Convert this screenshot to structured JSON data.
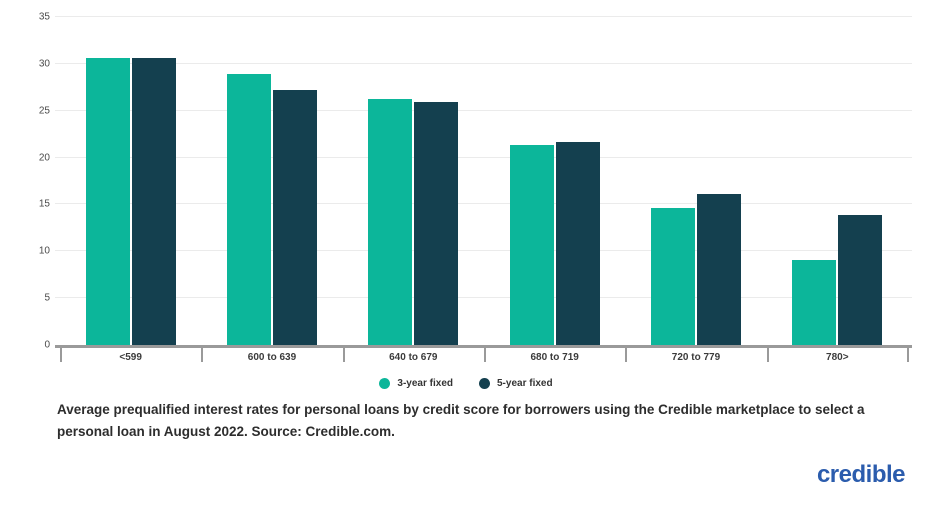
{
  "chart_data": {
    "type": "bar",
    "title": "",
    "xlabel": "",
    "ylabel": "",
    "categories": [
      "<599",
      "600 to 639",
      "640 to 679",
      "680 to 719",
      "720 to 779",
      "780>"
    ],
    "series": [
      {
        "name": "3-year fixed",
        "color": "#0cb69a",
        "values": [
          30.6,
          28.9,
          26.3,
          21.3,
          14.6,
          9.1
        ]
      },
      {
        "name": "5-year fixed",
        "color": "#14404f",
        "values": [
          30.6,
          27.2,
          25.9,
          21.7,
          16.1,
          13.9
        ]
      }
    ],
    "ylim": [
      0,
      35
    ],
    "yticks": [
      0,
      5,
      10,
      15,
      20,
      25,
      30,
      35
    ],
    "grid": true,
    "legend_position": "bottom"
  },
  "caption": {
    "text": "Average prequalified interest rates for personal loans by credit score for borrowers using the Credible marketplace to select a personal loan in August 2022. Source: Credible.com."
  },
  "logo": {
    "text": "credible",
    "color": "#2b5cad"
  },
  "colors": {
    "teal": "#0cb69a",
    "navy": "#14404f",
    "gridline": "#ebebeb",
    "axis": "#9a9a9a"
  }
}
